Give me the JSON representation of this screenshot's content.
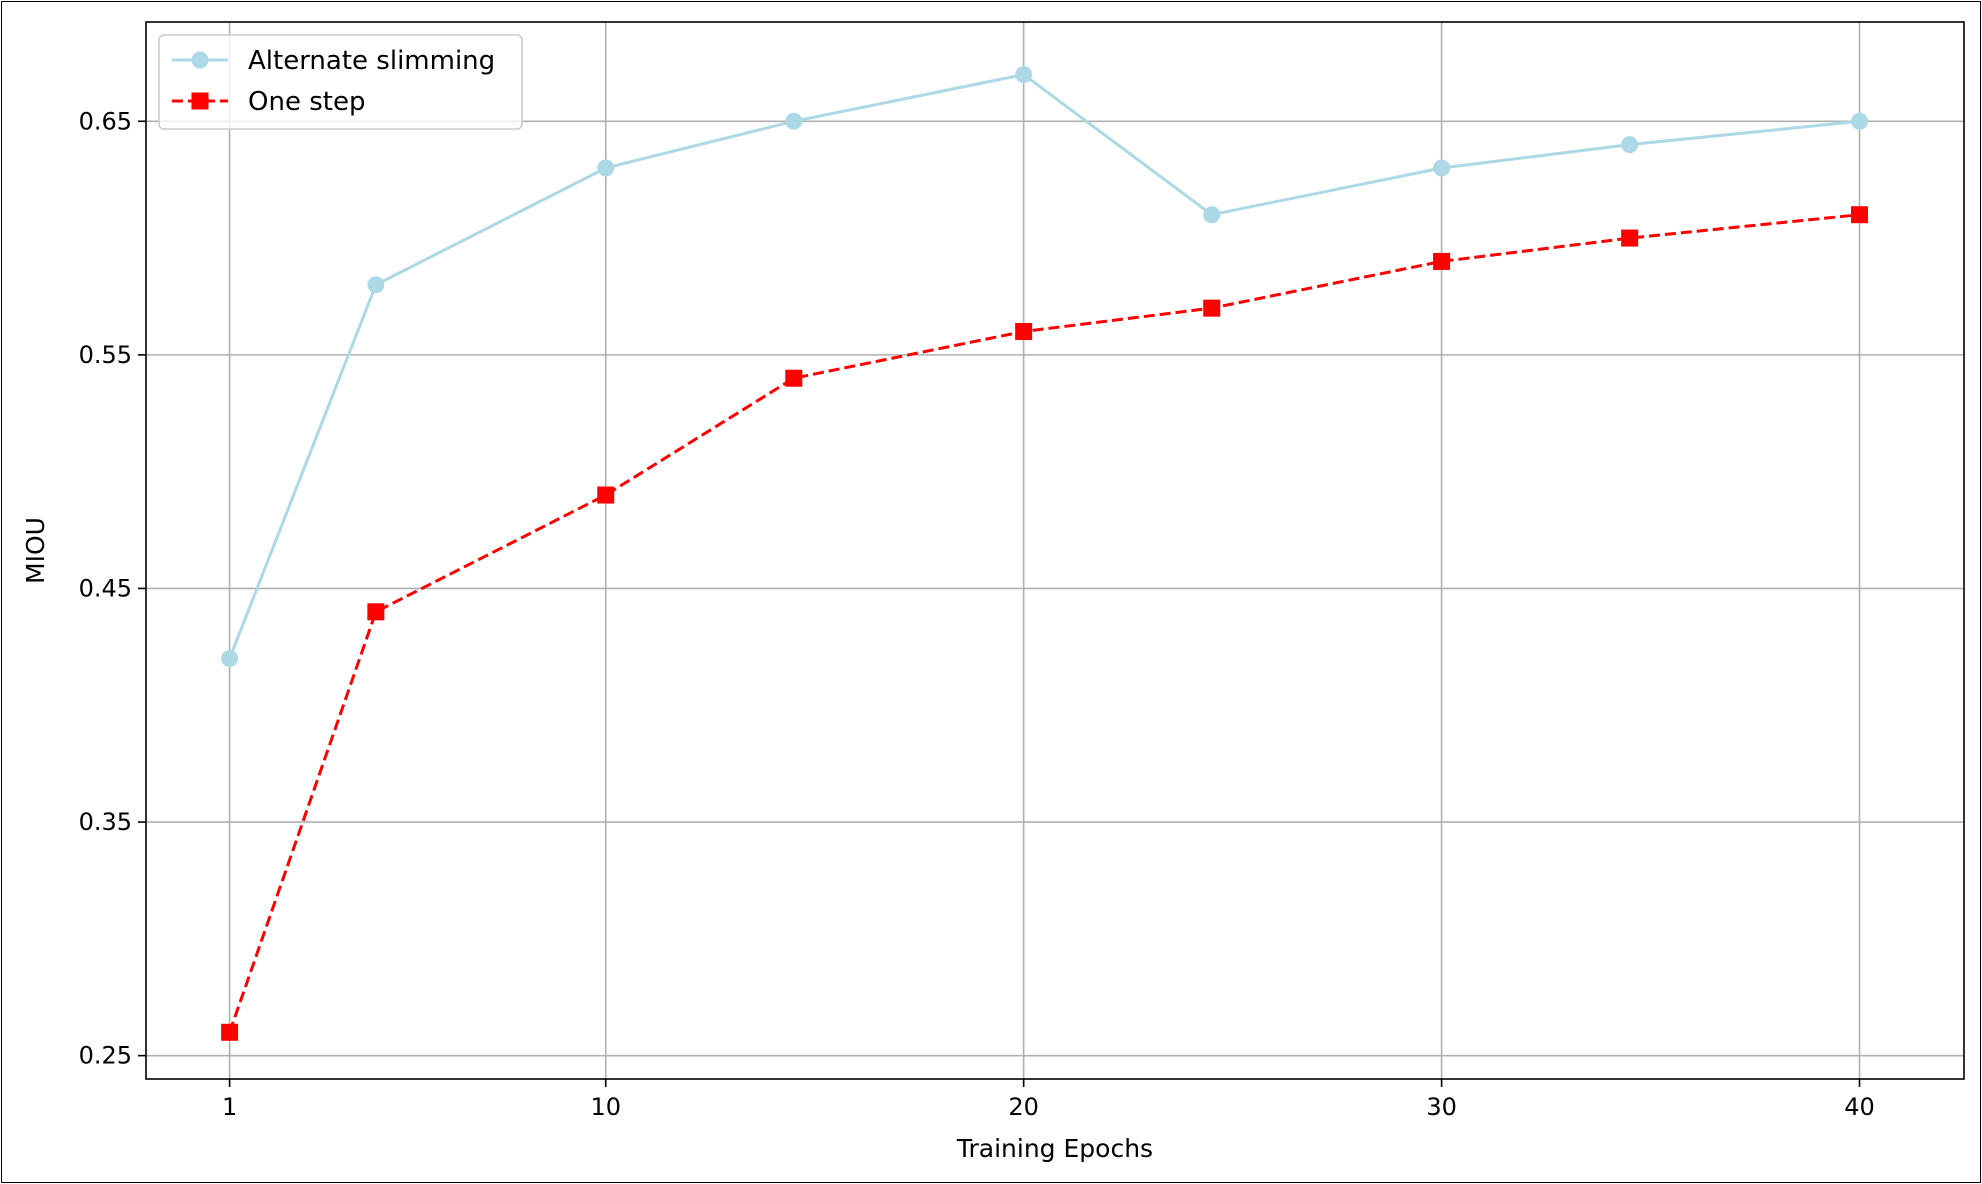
{
  "chart_data": {
    "type": "line",
    "xlabel": "Training Epochs",
    "ylabel": "MIOU",
    "xlim": [
      -1,
      42.5
    ],
    "ylim": [
      0.24,
      0.6925
    ],
    "x_ticks": [
      1,
      10,
      20,
      30,
      40
    ],
    "y_ticks": [
      0.25,
      0.35,
      0.45,
      0.55,
      0.65
    ],
    "x_tick_labels": [
      "1",
      "10",
      "20",
      "30",
      "40"
    ],
    "y_tick_labels": [
      "0.25",
      "0.35",
      "0.45",
      "0.55",
      "0.65"
    ],
    "grid": true,
    "legend_position": "top-left",
    "series": [
      {
        "name": "Alternate slimming",
        "color": "#add8e6",
        "marker": "circle",
        "line_style": "solid",
        "x": [
          1,
          4.5,
          10,
          14.5,
          20,
          24.5,
          30,
          34.5,
          40
        ],
        "y": [
          0.42,
          0.58,
          0.63,
          0.65,
          0.67,
          0.61,
          0.63,
          0.64,
          0.65
        ]
      },
      {
        "name": "One step",
        "color": "#ff0000",
        "marker": "square",
        "line_style": "dashed",
        "x": [
          1,
          4.5,
          10,
          14.5,
          20,
          24.5,
          30,
          34.5,
          40
        ],
        "y": [
          0.26,
          0.44,
          0.49,
          0.54,
          0.56,
          0.57,
          0.59,
          0.6,
          0.61
        ]
      }
    ]
  }
}
